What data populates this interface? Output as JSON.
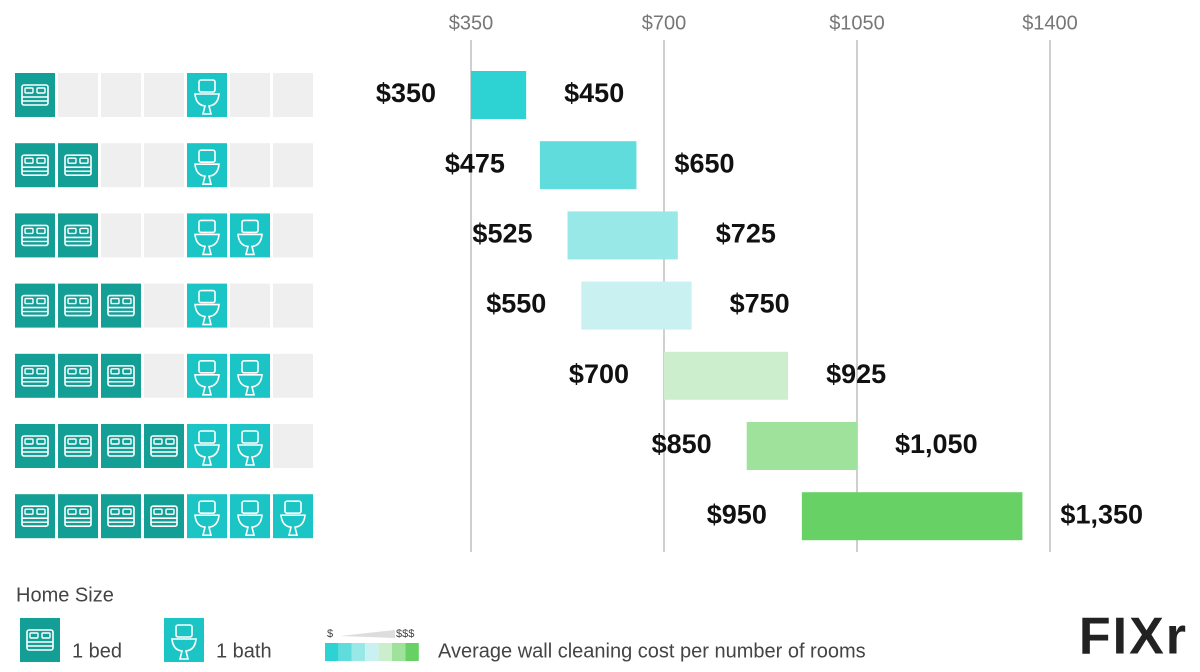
{
  "chart_data": {
    "type": "range_bar",
    "xlim": [
      350,
      1400
    ],
    "xticks": [
      {
        "value": 350,
        "label": "$350"
      },
      {
        "value": 700,
        "label": "$700"
      },
      {
        "value": 1050,
        "label": "$1050"
      },
      {
        "value": 1400,
        "label": "$1400"
      }
    ],
    "grid": true,
    "rows": [
      {
        "beds": 1,
        "baths": 1,
        "low": 350,
        "high": 450,
        "low_label": "$350",
        "high_label": "$450",
        "color": "#2dd2d2"
      },
      {
        "beds": 2,
        "baths": 1,
        "low": 475,
        "high": 650,
        "low_label": "$475",
        "high_label": "$650",
        "color": "#60dcdc"
      },
      {
        "beds": 2,
        "baths": 2,
        "low": 525,
        "high": 725,
        "low_label": "$525",
        "high_label": "$725",
        "color": "#98e8e8"
      },
      {
        "beds": 3,
        "baths": 1,
        "low": 550,
        "high": 750,
        "low_label": "$550",
        "high_label": "$750",
        "color": "#c9f1f1"
      },
      {
        "beds": 3,
        "baths": 2,
        "low": 700,
        "high": 925,
        "low_label": "$700",
        "high_label": "$925",
        "color": "#cdeecd"
      },
      {
        "beds": 4,
        "baths": 2,
        "low": 850,
        "high": 1050,
        "low_label": "$850",
        "high_label": "$1,050",
        "color": "#9ee29b"
      },
      {
        "beds": 4,
        "baths": 3,
        "low": 950,
        "high": 1350,
        "low_label": "$950",
        "high_label": "$1,350",
        "color": "#67d166"
      }
    ],
    "legend": {
      "title": "Home Size",
      "bed": "1 bed",
      "bath": "1 bath",
      "scale_low": "$",
      "scale_high": "$$$",
      "caption": "Average wall cleaning cost per number of rooms"
    },
    "logo": "FIXr"
  }
}
